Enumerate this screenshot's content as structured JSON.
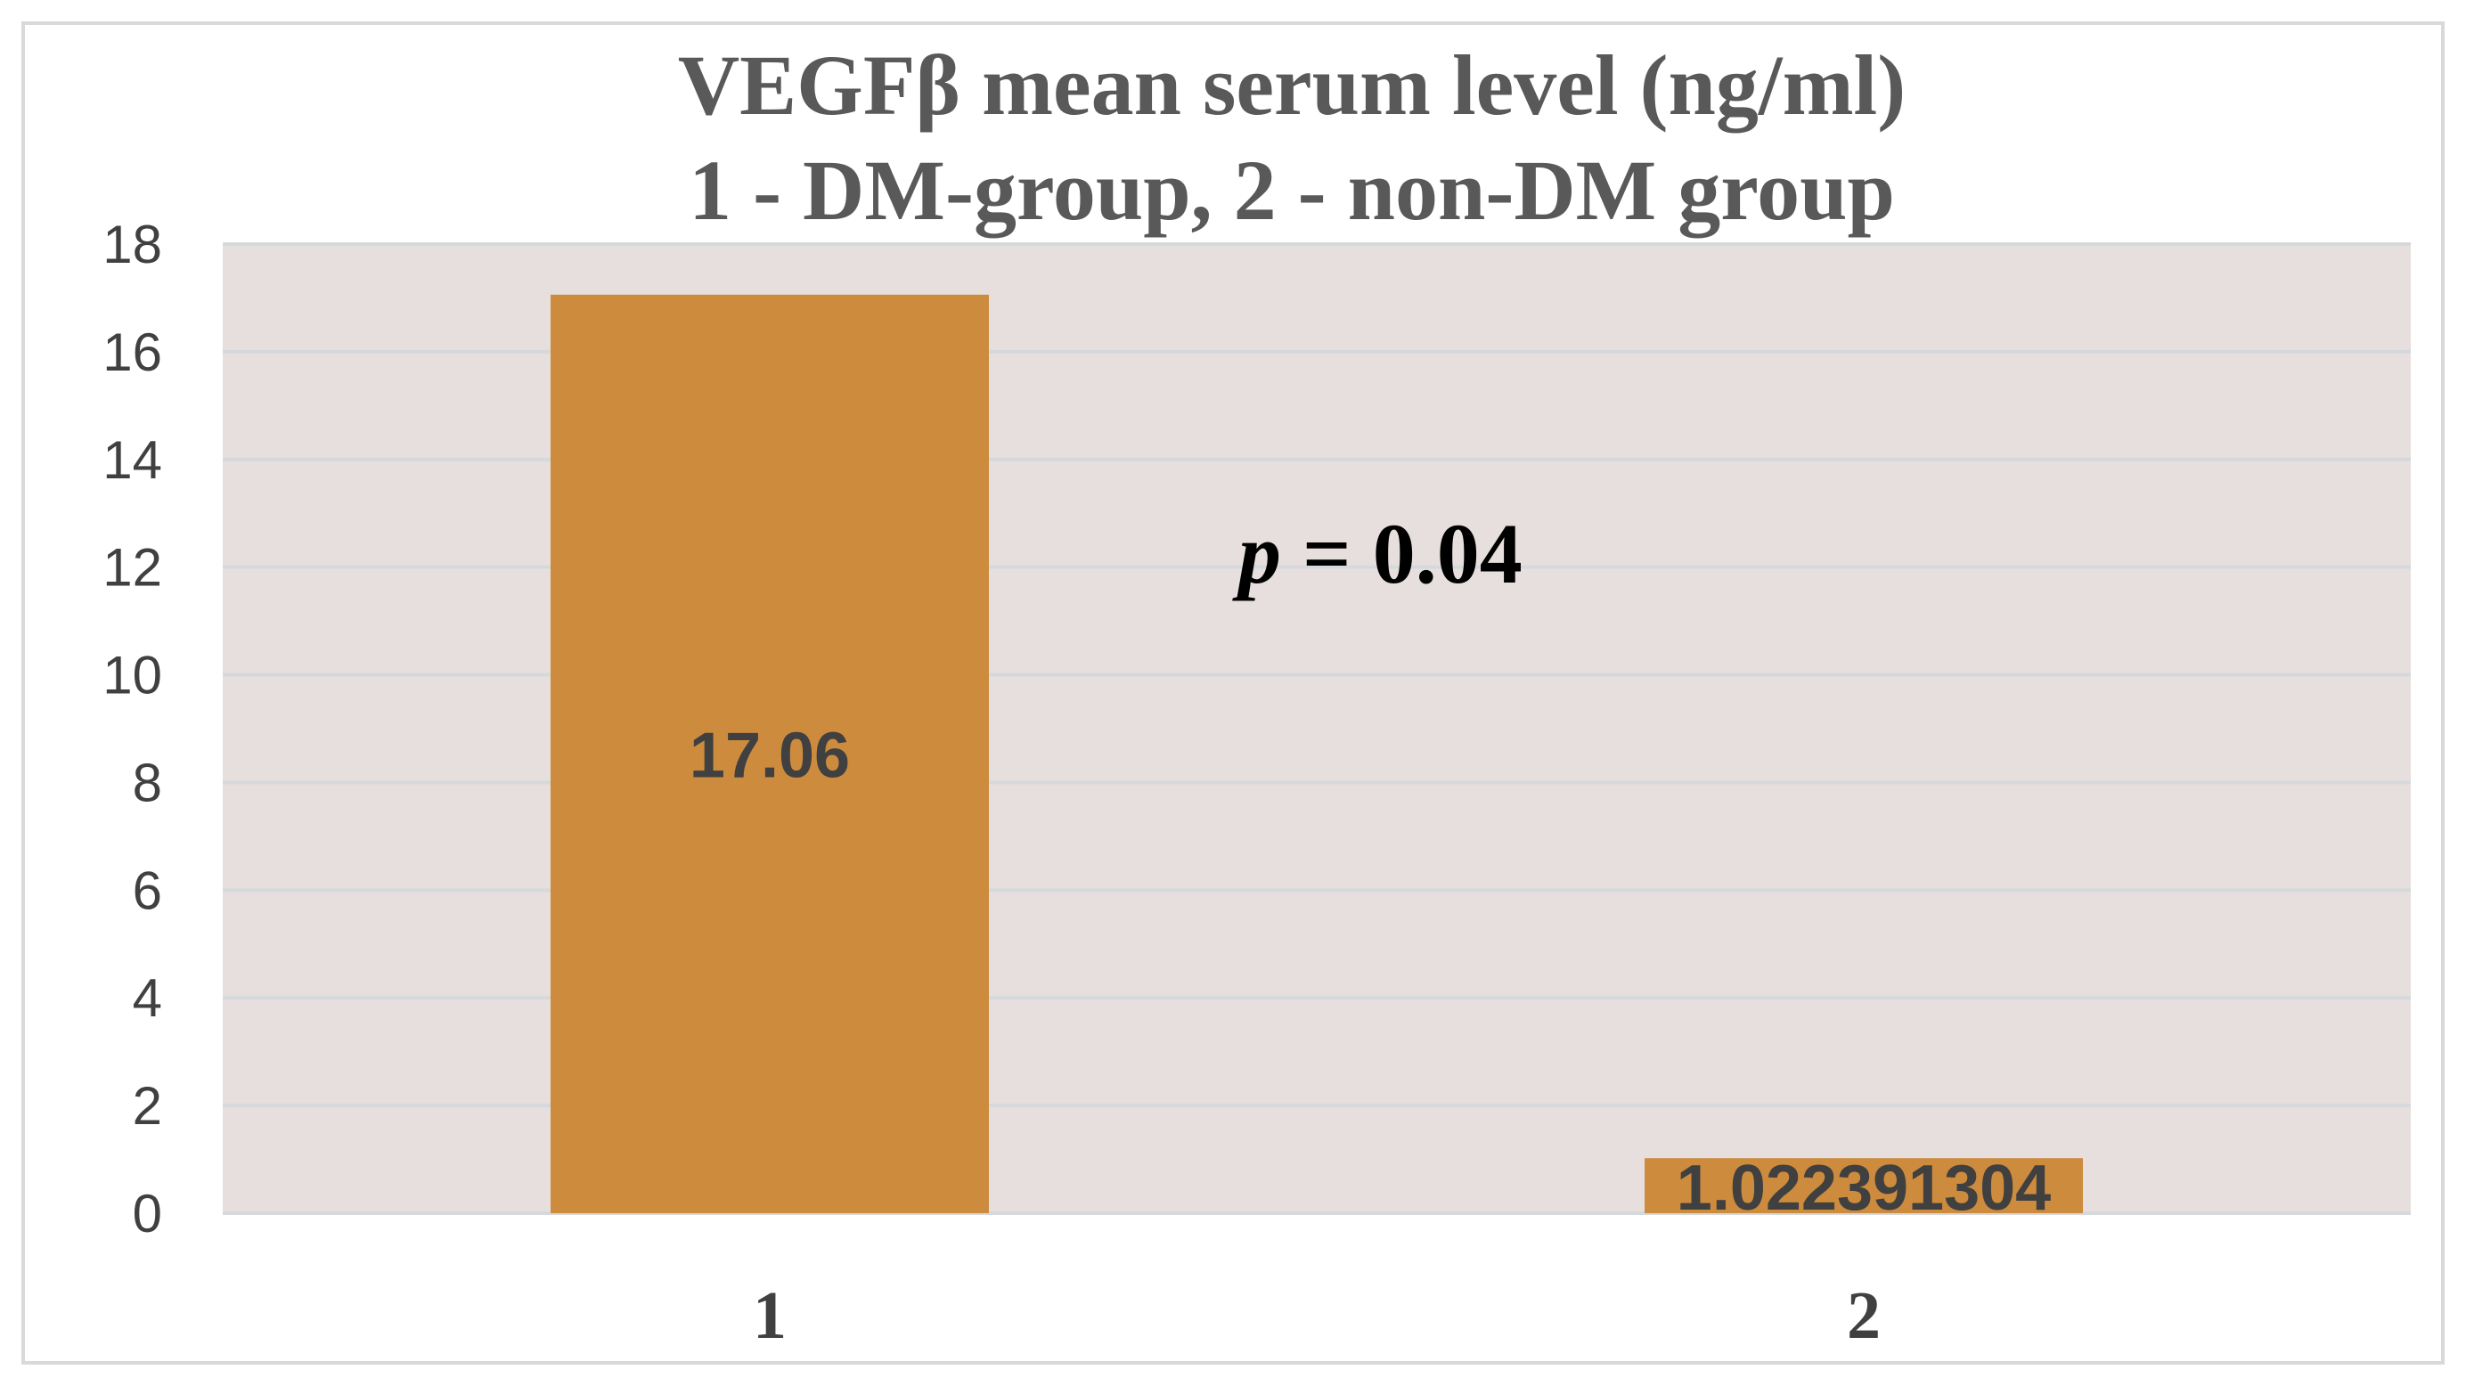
{
  "chart_data": {
    "type": "bar",
    "title": "VEGFβ mean serum level (ng/ml)",
    "subtitle": "1 - DM-group, 2 - non-DM group",
    "xlabel": "",
    "ylabel": "",
    "categories": [
      "1",
      "2"
    ],
    "values": [
      17.06,
      1.022391304
    ],
    "data_labels": [
      "17.06",
      "1.022391304"
    ],
    "ylim": [
      0,
      18
    ],
    "yticks": [
      "0",
      "2",
      "4",
      "6",
      "8",
      "10",
      "12",
      "14",
      "16",
      "18"
    ],
    "ytick_values": [
      0,
      2,
      4,
      6,
      8,
      10,
      12,
      14,
      16,
      18
    ],
    "grid": true,
    "legend": "none",
    "annotation": {
      "italic": "p",
      "text": " = 0.04"
    },
    "colors": {
      "bar": "#CD8B3E",
      "plot_background": "#E7DFDD",
      "gridline": "#D6D9DC",
      "frame": "#D9D9D9"
    }
  }
}
